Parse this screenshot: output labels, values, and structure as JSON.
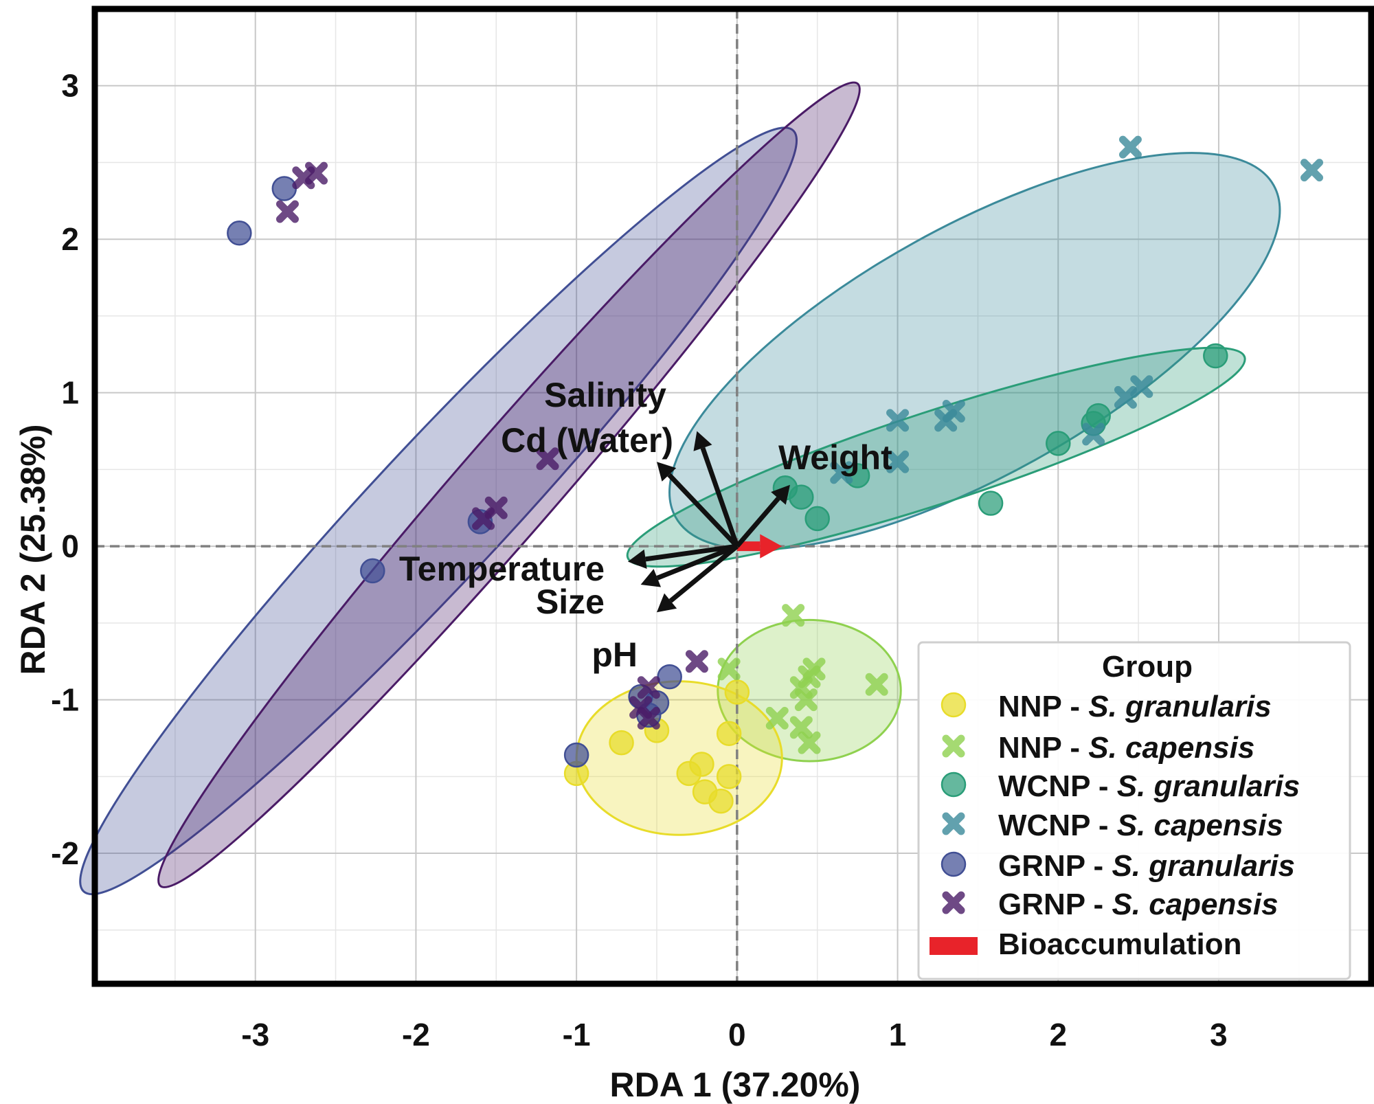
{
  "chart_data": {
    "type": "scatter",
    "title": "",
    "xlabel": "RDA 1 (37.20%)",
    "ylabel": "RDA 2 (25.38%)",
    "xlim": [
      -4.0,
      3.95
    ],
    "ylim": [
      -2.85,
      3.5
    ],
    "xticks": [
      -3,
      -2,
      -1,
      0,
      1,
      2,
      3
    ],
    "yticks": [
      -2,
      -1,
      0,
      1,
      2,
      3
    ],
    "grid": true,
    "legend_title": "Group",
    "legend_position": "bottom-right",
    "series": [
      {
        "name": "NNP",
        "species": "S. granularis",
        "marker": "circle",
        "color": "#e8dc2a",
        "points": [
          [
            -1.0,
            -1.48
          ],
          [
            -0.72,
            -1.28
          ],
          [
            -0.5,
            -1.2
          ],
          [
            -0.3,
            -1.48
          ],
          [
            -0.22,
            -1.42
          ],
          [
            -0.2,
            -1.6
          ],
          [
            -0.1,
            -1.66
          ],
          [
            -0.05,
            -1.5
          ],
          [
            -0.05,
            -1.22
          ],
          [
            0.0,
            -0.95
          ]
        ],
        "ellipse": {
          "cx": -0.36,
          "cy": -1.38,
          "rx": 0.64,
          "ry": 0.5,
          "angle_deg": 0
        }
      },
      {
        "name": "NNP",
        "species": "S. capensis",
        "marker": "cross",
        "color": "#8fd14f",
        "points": [
          [
            0.35,
            -0.45
          ],
          [
            -0.05,
            -0.8
          ],
          [
            0.25,
            -1.12
          ],
          [
            0.4,
            -0.92
          ],
          [
            0.43,
            -1.0
          ],
          [
            0.45,
            -0.85
          ],
          [
            0.48,
            -0.8
          ],
          [
            0.4,
            -1.18
          ],
          [
            0.45,
            -1.28
          ],
          [
            0.87,
            -0.9
          ]
        ],
        "ellipse": {
          "cx": 0.45,
          "cy": -0.94,
          "rx": 0.57,
          "ry": 0.46,
          "angle_deg": 0
        }
      },
      {
        "name": "WCNP",
        "species": "S. granularis",
        "marker": "circle",
        "color": "#2a9d78",
        "points": [
          [
            0.3,
            0.38
          ],
          [
            0.4,
            0.32
          ],
          [
            0.5,
            0.18
          ],
          [
            0.75,
            0.46
          ],
          [
            1.58,
            0.28
          ],
          [
            2.0,
            0.67
          ],
          [
            2.25,
            0.85
          ],
          [
            2.22,
            0.8
          ],
          [
            2.98,
            1.24
          ]
        ],
        "ellipse": {
          "cx": 1.24,
          "cy": 0.58,
          "rx": 2.02,
          "ry": 0.3,
          "angle_deg": 18
        }
      },
      {
        "name": "WCNP",
        "species": "S. capensis",
        "marker": "cross",
        "color": "#3b8a9a",
        "points": [
          [
            0.65,
            0.48
          ],
          [
            1.0,
            0.55
          ],
          [
            1.0,
            0.82
          ],
          [
            1.3,
            0.82
          ],
          [
            1.35,
            0.88
          ],
          [
            2.22,
            0.73
          ],
          [
            2.42,
            0.97
          ],
          [
            2.52,
            1.04
          ],
          [
            2.45,
            2.6
          ],
          [
            3.58,
            2.45
          ]
        ],
        "ellipse": {
          "cx": 1.48,
          "cy": 1.27,
          "rx": 2.13,
          "ry": 0.81,
          "angle_deg": 29
        }
      },
      {
        "name": "GRNP",
        "species": "S. granularis",
        "marker": "circle",
        "color": "#414f94",
        "points": [
          [
            -3.1,
            2.04
          ],
          [
            -2.82,
            2.33
          ],
          [
            -2.27,
            -0.16
          ],
          [
            -1.6,
            0.16
          ],
          [
            -1.0,
            -1.36
          ],
          [
            -0.6,
            -0.98
          ],
          [
            -0.55,
            -1.1
          ],
          [
            -0.42,
            -0.85
          ],
          [
            -0.5,
            -1.02
          ]
        ],
        "ellipse": {
          "cx": -1.86,
          "cy": 0.23,
          "rx": 3.24,
          "ry": 0.44,
          "angle_deg": 47
        }
      },
      {
        "name": "GRNP",
        "species": "S. capensis",
        "marker": "cross",
        "color": "#4a1b66",
        "points": [
          [
            -2.8,
            2.18
          ],
          [
            -2.7,
            2.4
          ],
          [
            -2.62,
            2.43
          ],
          [
            -1.18,
            0.57
          ],
          [
            -1.5,
            0.25
          ],
          [
            -1.58,
            0.18
          ],
          [
            -0.55,
            -0.92
          ],
          [
            -0.6,
            -1.05
          ],
          [
            -0.55,
            -1.12
          ],
          [
            -0.25,
            -0.75
          ]
        ],
        "ellipse": {
          "cx": -1.42,
          "cy": 0.4,
          "rx": 3.31,
          "ry": 0.32,
          "angle_deg": 49
        }
      }
    ],
    "vectors": [
      {
        "label": "Salinity",
        "end": [
          -0.25,
          0.75
        ]
      },
      {
        "label": "Cd (Water)",
        "end": [
          -0.5,
          0.55
        ]
      },
      {
        "label": "Weight",
        "end": [
          0.33,
          0.4
        ]
      },
      {
        "label": "Temperature",
        "end": [
          -0.68,
          -0.1
        ]
      },
      {
        "label": "Size",
        "end": [
          -0.6,
          -0.25
        ]
      },
      {
        "label": "pH",
        "end": [
          -0.5,
          -0.43
        ]
      }
    ],
    "bioaccumulation": {
      "label": "Bioaccumulation",
      "end": [
        0.28,
        0.0
      ],
      "color": "#e8232a"
    }
  },
  "legend": {
    "title": "Group",
    "entries": [
      {
        "site": "NNP - ",
        "species": "S. granularis"
      },
      {
        "site": "NNP - ",
        "species": "S. capensis"
      },
      {
        "site": "WCNP - ",
        "species": "S. granularis"
      },
      {
        "site": "WCNP - ",
        "species": "S. capensis"
      },
      {
        "site": "GRNP - ",
        "species": "S. granularis"
      },
      {
        "site": "GRNP - ",
        "species": "S. capensis"
      }
    ],
    "bio_label": "Bioaccumulation"
  },
  "colors": {
    "nnp_gran": "#e8dc2a",
    "nnp_cap": "#8fd14f",
    "wcnp_gran": "#2a9d78",
    "wcnp_cap": "#3b8a9a",
    "grnp_gran": "#414f94",
    "grnp_cap": "#4a1b66",
    "bio": "#e8232a"
  }
}
